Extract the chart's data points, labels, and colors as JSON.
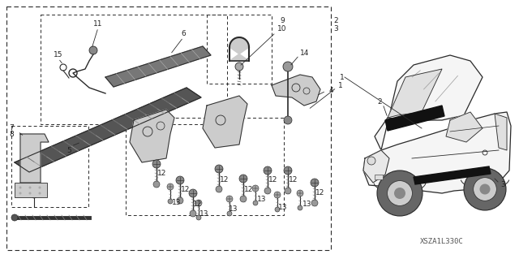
{
  "bg_color": "#ffffff",
  "diagram_code": "XSZA1L330C",
  "fig_width": 6.4,
  "fig_height": 3.19,
  "dpi": 100,
  "line_color": "#2a2a2a",
  "text_color": "#222222",
  "font_size_label": 6.5,
  "font_size_code": 6.5
}
